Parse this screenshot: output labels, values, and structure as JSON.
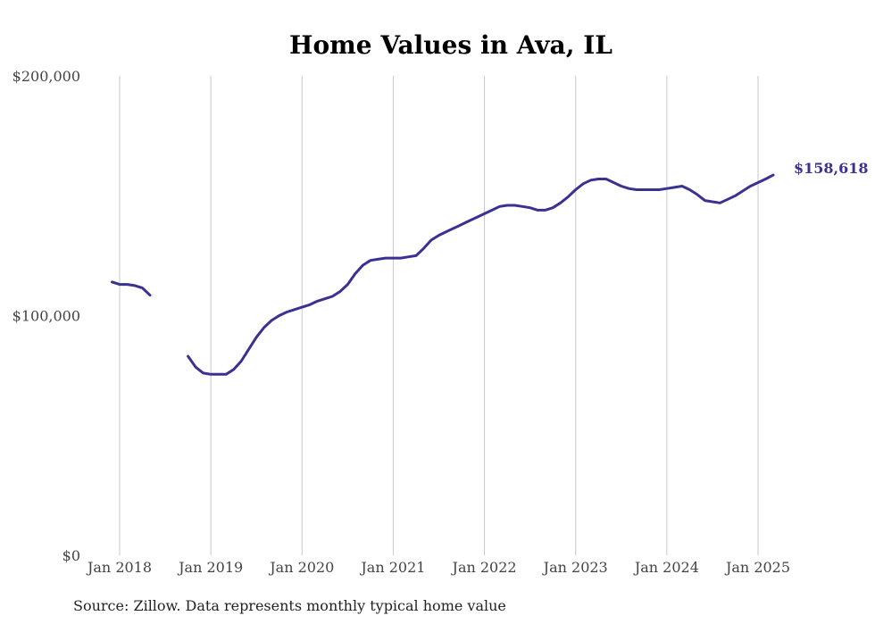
{
  "chart_data": {
    "type": "line",
    "title": "Home Values in Ava, IL",
    "xlabel": "",
    "ylabel": "",
    "ylim": [
      0,
      200000
    ],
    "y_ticks": [
      {
        "value": 0,
        "label": "$0"
      },
      {
        "value": 100000,
        "label": "$100,000"
      },
      {
        "value": 200000,
        "label": "$200,000"
      }
    ],
    "x_ticks": [
      {
        "value": "2018-01",
        "label": "Jan 2018"
      },
      {
        "value": "2019-01",
        "label": "Jan 2019"
      },
      {
        "value": "2020-01",
        "label": "Jan 2020"
      },
      {
        "value": "2021-01",
        "label": "Jan 2021"
      },
      {
        "value": "2022-01",
        "label": "Jan 2022"
      },
      {
        "value": "2023-01",
        "label": "Jan 2023"
      },
      {
        "value": "2024-01",
        "label": "Jan 2024"
      },
      {
        "value": "2025-01",
        "label": "Jan 2025"
      }
    ],
    "xlim": [
      "2017-12",
      "2025-04"
    ],
    "grid": "vertical",
    "series": [
      {
        "color": "#3a3190",
        "segments": [
          [
            [
              "2017-12",
              114000
            ],
            [
              "2018-01",
              113000
            ],
            [
              "2018-02",
              113000
            ],
            [
              "2018-03",
              112500
            ],
            [
              "2018-04",
              111500
            ],
            [
              "2018-05",
              108500
            ]
          ],
          [
            [
              "2018-10",
              83000
            ],
            [
              "2018-11",
              78500
            ],
            [
              "2018-12",
              76000
            ],
            [
              "2019-01",
              75500
            ],
            [
              "2019-02",
              75500
            ],
            [
              "2019-03",
              75500
            ],
            [
              "2019-04",
              77500
            ],
            [
              "2019-05",
              81000
            ],
            [
              "2019-06",
              86000
            ],
            [
              "2019-07",
              91000
            ],
            [
              "2019-08",
              95000
            ],
            [
              "2019-09",
              98000
            ],
            [
              "2019-10",
              100000
            ],
            [
              "2019-11",
              101500
            ],
            [
              "2019-12",
              102500
            ],
            [
              "2020-01",
              103500
            ],
            [
              "2020-02",
              104500
            ],
            [
              "2020-03",
              106000
            ],
            [
              "2020-04",
              107000
            ],
            [
              "2020-05",
              108000
            ],
            [
              "2020-06",
              110000
            ],
            [
              "2020-07",
              113000
            ],
            [
              "2020-08",
              117500
            ],
            [
              "2020-09",
              121000
            ],
            [
              "2020-10",
              123000
            ],
            [
              "2020-11",
              123500
            ],
            [
              "2020-12",
              124000
            ],
            [
              "2021-01",
              124000
            ],
            [
              "2021-02",
              124000
            ],
            [
              "2021-03",
              124500
            ],
            [
              "2021-04",
              125000
            ],
            [
              "2021-05",
              128000
            ],
            [
              "2021-06",
              131500
            ],
            [
              "2021-07",
              133500
            ],
            [
              "2021-08",
              135000
            ],
            [
              "2021-09",
              136500
            ],
            [
              "2021-10",
              138000
            ],
            [
              "2021-11",
              139500
            ],
            [
              "2021-12",
              141000
            ],
            [
              "2022-01",
              142500
            ],
            [
              "2022-02",
              144000
            ],
            [
              "2022-03",
              145500
            ],
            [
              "2022-04",
              146000
            ],
            [
              "2022-05",
              146000
            ],
            [
              "2022-06",
              145500
            ],
            [
              "2022-07",
              145000
            ],
            [
              "2022-08",
              144000
            ],
            [
              "2022-09",
              144000
            ],
            [
              "2022-10",
              145000
            ],
            [
              "2022-11",
              147000
            ],
            [
              "2022-12",
              149500
            ],
            [
              "2023-01",
              152500
            ],
            [
              "2023-02",
              155000
            ],
            [
              "2023-03",
              156500
            ],
            [
              "2023-04",
              157000
            ],
            [
              "2023-05",
              157000
            ],
            [
              "2023-06",
              155500
            ],
            [
              "2023-07",
              154000
            ],
            [
              "2023-08",
              153000
            ],
            [
              "2023-09",
              152500
            ],
            [
              "2023-10",
              152500
            ],
            [
              "2023-11",
              152500
            ],
            [
              "2023-12",
              152500
            ],
            [
              "2024-01",
              153000
            ],
            [
              "2024-02",
              153500
            ],
            [
              "2024-03",
              154000
            ],
            [
              "2024-04",
              152500
            ],
            [
              "2024-05",
              150500
            ],
            [
              "2024-06",
              148000
            ],
            [
              "2024-07",
              147500
            ],
            [
              "2024-08",
              147000
            ],
            [
              "2024-09",
              148500
            ],
            [
              "2024-10",
              150000
            ],
            [
              "2024-11",
              152000
            ],
            [
              "2024-12",
              154000
            ],
            [
              "2025-01",
              155500
            ],
            [
              "2025-02",
              157000
            ],
            [
              "2025-03",
              158618
            ]
          ]
        ]
      }
    ],
    "end_label": "$158,618",
    "source_note": "Source: Zillow. Data represents monthly typical home value"
  }
}
